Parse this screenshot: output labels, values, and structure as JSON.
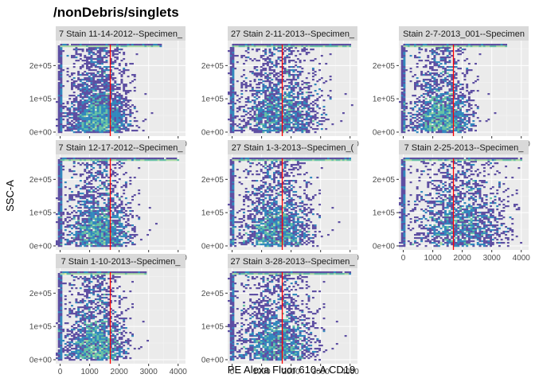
{
  "chart_data": {
    "type": "heatmap",
    "title": "/nonDebris/singlets",
    "xlabel": "PE Alexa Fluor 610-A CD19",
    "ylabel": "SSC-A",
    "xlim": [
      -150,
      4250
    ],
    "ylim": [
      -12000,
      275000
    ],
    "x_ticks": [
      0,
      1000,
      2000,
      3000,
      4000
    ],
    "x_tick_labels": [
      "0",
      "1000",
      "2000",
      "3000",
      "4000"
    ],
    "y_ticks": [
      0,
      100000,
      200000
    ],
    "y_tick_labels": [
      "0e+00",
      "1e+05",
      "2e+05"
    ],
    "gate_x": 1700,
    "gate_color": "#ff0000",
    "background": "#ebebeb",
    "strip_background": "#d9d9d9",
    "grid": true,
    "colors": {
      "low": "#5e4fa2",
      "mid_low": "#3288bd",
      "mid": "#66c2a5",
      "mid_high": "#abdda4",
      "high": "#e6f598"
    },
    "panels": [
      {
        "label": "7 Stain 11-14-2012--Specimen_",
        "peak_x": 1300,
        "peak_y": 30000,
        "spread_x": 500,
        "spread_y": 60000,
        "saturation_extent": [
          0,
          3400
        ]
      },
      {
        "label": "27 Stain 2-11-2013--Specimen_",
        "peak_x": 1600,
        "peak_y": 50000,
        "spread_x": 700,
        "spread_y": 70000,
        "saturation_extent": [
          0,
          4000
        ]
      },
      {
        "label": "Stain 2-7-2013_001--Specimen",
        "peak_x": 1300,
        "peak_y": 30000,
        "spread_x": 500,
        "spread_y": 60000,
        "saturation_extent": [
          0,
          3500
        ]
      },
      {
        "label": "7 Stain 12-17-2012--Specimen_",
        "peak_x": 1300,
        "peak_y": 40000,
        "spread_x": 550,
        "spread_y": 60000,
        "saturation_extent": [
          0,
          4000
        ]
      },
      {
        "label": "27 Stain 1-3-2013--Specimen_(",
        "peak_x": 1500,
        "peak_y": 40000,
        "spread_x": 600,
        "spread_y": 65000,
        "saturation_extent": [
          0,
          4000
        ]
      },
      {
        "label": "7 Stain 2-25-2013--Specimen_",
        "peak_x": 1900,
        "peak_y": 60000,
        "spread_x": 800,
        "spread_y": 70000,
        "saturation_extent": [
          0,
          4000
        ]
      },
      {
        "label": "7 Stain 1-10-2013--Specimen_",
        "peak_x": 1200,
        "peak_y": 30000,
        "spread_x": 500,
        "spread_y": 60000,
        "saturation_extent": [
          0,
          2900
        ]
      },
      {
        "label": "27 Stain 3-28-2013--Specimen_",
        "peak_x": 1500,
        "peak_y": 40000,
        "spread_x": 650,
        "spread_y": 65000,
        "saturation_extent": [
          0,
          4000
        ]
      }
    ]
  }
}
